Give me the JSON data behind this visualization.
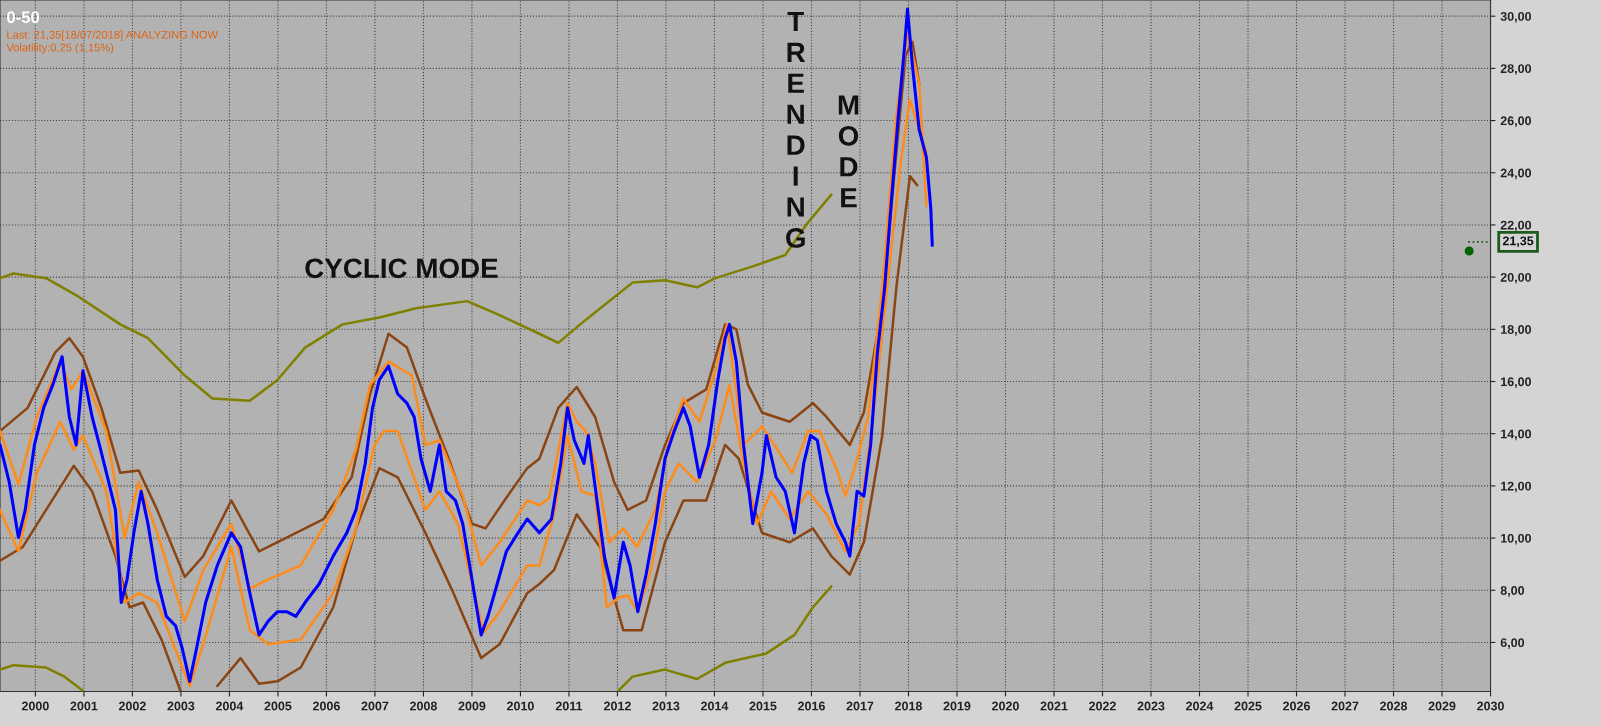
{
  "chart_data": {
    "type": "line",
    "title": "0-50",
    "subtitle": "Last: 21,35[18/07/2018] ANALYZING NOW\nVolatility:0,25 (1,15%)",
    "annotations": [
      "CYCLIC MODE",
      "TRENDING",
      "MODE"
    ],
    "ref_lines": [
      {
        "axis": "y",
        "value": 21.35,
        "label": "21,35",
        "color": "#1e5a1e",
        "line_style": "dotted"
      }
    ],
    "xlim": [
      1999.27,
      2030
    ],
    "xticks": [
      2000,
      2001,
      2002,
      2003,
      2004,
      2005,
      2006,
      2007,
      2008,
      2009,
      2010,
      2011,
      2012,
      2013,
      2014,
      2015,
      2016,
      2017,
      2018,
      2019,
      2020,
      2021,
      2022,
      2023,
      2024,
      2025,
      2026,
      2027,
      2028,
      2029,
      2030
    ],
    "ylim": [
      4.12,
      30.62
    ],
    "yticks": [
      {
        "value": 6,
        "label": "6,00"
      },
      {
        "value": 8,
        "label": "8,00"
      },
      {
        "value": 10,
        "label": "10,00"
      },
      {
        "value": 12,
        "label": "12,00"
      },
      {
        "value": 14,
        "label": "14,00"
      },
      {
        "value": 16,
        "label": "16,00"
      },
      {
        "value": 18,
        "label": "18,00"
      },
      {
        "value": 20,
        "label": "20,00"
      },
      {
        "value": 22,
        "label": "22,00"
      },
      {
        "value": 24,
        "label": "24,00"
      },
      {
        "value": 26,
        "label": "26,00"
      },
      {
        "value": 28,
        "label": "28,00"
      },
      {
        "value": 30,
        "label": "30,00"
      }
    ],
    "grid": true,
    "legend": false,
    "line_style": "solid",
    "series": [
      {
        "color": "#808000",
        "x": [
          1999.27,
          1999.55,
          2000.22,
          2000.89,
          2001.75,
          2002.32,
          2003.08,
          2003.65,
          2004.42,
          2004.99,
          2005.56,
          2006.33,
          2007.09,
          2007.85,
          2008.9,
          2009.57,
          2010.39,
          2010.78,
          2011.35,
          2012.31,
          2012.98,
          2013.64,
          2014.02,
          2014.79,
          2015.46,
          2015.93,
          2016.41
        ],
        "values": [
          19.96,
          20.14,
          19.96,
          19.25,
          18.19,
          17.66,
          16.23,
          15.35,
          15.26,
          16.06,
          17.3,
          18.19,
          18.45,
          18.81,
          19.08,
          18.54,
          17.83,
          17.48,
          18.37,
          19.79,
          19.88,
          19.61,
          19.96,
          20.41,
          20.85,
          22.1,
          23.16
        ]
      },
      {
        "color": "#808000",
        "x": [
          1999.27,
          1999.55,
          2000.22,
          2000.6,
          2000.98,
          2006.5,
          2012.02,
          2012.31,
          2012.98,
          2013.64,
          2014.22,
          2015.07,
          2015.65,
          2016.03,
          2016.41
        ],
        "values": [
          4.96,
          5.13,
          5.04,
          4.69,
          4.15,
          null,
          4.15,
          4.69,
          4.96,
          4.6,
          5.22,
          5.58,
          6.29,
          7.35,
          8.15
        ]
      },
      {
        "color": "#8b4513",
        "x": [
          1999.27,
          1999.84,
          2000.41,
          2000.7,
          2000.98,
          2001.36,
          2001.75,
          2002.13,
          2002.51,
          2003.08,
          2003.46,
          2004.04,
          2004.61,
          2005.18,
          2005.94,
          2006.52,
          2006.9,
          2007.28,
          2007.66,
          2008.04,
          2008.52,
          2009.0,
          2009.28,
          2009.67,
          2010.14,
          2010.39,
          2010.78,
          2011.16,
          2011.54,
          2011.93,
          2012.21,
          2012.59,
          2012.98,
          2013.36,
          2013.83,
          2014.22,
          2014.45,
          2014.69,
          2014.98,
          2015.55,
          2016.03,
          2016.31,
          2016.79,
          2017.08,
          2017.46,
          2017.75,
          2017.94,
          2018.08,
          2018.22
        ],
        "values": [
          14.1,
          14.99,
          17.12,
          17.66,
          16.95,
          14.99,
          12.5,
          12.59,
          11.08,
          8.51,
          9.31,
          11.44,
          9.49,
          10.02,
          10.73,
          12.33,
          15.52,
          17.83,
          17.3,
          15.35,
          13.04,
          10.55,
          10.37,
          11.44,
          12.68,
          13.04,
          14.99,
          15.79,
          14.64,
          12.15,
          11.08,
          11.44,
          13.57,
          15.17,
          15.7,
          18.19,
          18.01,
          15.88,
          14.81,
          14.46,
          15.17,
          14.64,
          13.57,
          14.81,
          18.9,
          24.76,
          28.49,
          29.02,
          27.42
        ]
      },
      {
        "color": "#8b4513",
        "x": [
          1999.27,
          1999.74,
          2000.22,
          2000.79,
          2001.17,
          2001.65,
          2001.94,
          2002.22,
          2002.6,
          2002.99,
          2003.4,
          2003.75,
          2004.23,
          2004.61,
          2004.99,
          2005.47,
          2006.14,
          2006.61,
          2007.09,
          2007.47,
          2008.04,
          2008.62,
          2009.19,
          2009.57,
          2010.14,
          2010.39,
          2010.69,
          2011.16,
          2011.64,
          2012.12,
          2012.5,
          2012.98,
          2013.36,
          2013.83,
          2014.22,
          2014.5,
          2014.98,
          2015.55,
          2016.03,
          2016.41,
          2016.79,
          2017.08,
          2017.46,
          2017.75,
          2018.03,
          2018.18
        ],
        "values": [
          9.13,
          9.66,
          11.08,
          12.77,
          11.79,
          9.31,
          7.35,
          7.53,
          6.11,
          4.15,
          null,
          4.33,
          5.4,
          4.42,
          4.51,
          5.04,
          7.35,
          10.37,
          12.68,
          12.33,
          10.2,
          7.89,
          5.4,
          5.93,
          7.89,
          8.24,
          8.77,
          10.91,
          9.66,
          6.47,
          6.47,
          9.84,
          11.44,
          11.44,
          13.57,
          13.04,
          10.2,
          9.84,
          10.37,
          9.31,
          8.6,
          9.84,
          13.93,
          19.61,
          23.87,
          23.52
        ]
      },
      {
        "color": "#ff8c1a",
        "x": [
          1999.27,
          1999.65,
          2000.03,
          2000.51,
          2000.74,
          2000.98,
          2001.46,
          2001.84,
          2002.13,
          2002.51,
          2003.08,
          2003.46,
          2004.04,
          2004.42,
          2004.8,
          2005.47,
          2006.14,
          2006.61,
          2006.9,
          2007.28,
          2007.76,
          2008.04,
          2008.33,
          2008.81,
          2009.19,
          2009.57,
          2010.14,
          2010.39,
          2010.59,
          2010.97,
          2011.16,
          2011.35,
          2011.54,
          2011.83,
          2012.12,
          2012.4,
          2012.78,
          2013.07,
          2013.36,
          2013.69,
          2014.02,
          2014.26,
          2014.6,
          2014.98,
          2015.36,
          2015.6,
          2015.93,
          2016.17,
          2016.51,
          2016.7,
          2016.89,
          2017.17,
          2017.46,
          2017.75,
          2017.98,
          2018.22,
          2018.37
        ],
        "values": [
          14.1,
          12.06,
          14.64,
          16.77,
          15.7,
          16.41,
          14.1,
          10.02,
          12.15,
          10.2,
          6.82,
          8.77,
          10.55,
          8.06,
          8.42,
          8.95,
          11.08,
          13.39,
          15.88,
          16.77,
          16.23,
          13.57,
          13.75,
          11.62,
          8.95,
          9.84,
          11.44,
          11.26,
          11.53,
          15.17,
          14.46,
          14.1,
          12.86,
          9.84,
          10.37,
          9.66,
          11.08,
          13.75,
          15.35,
          14.46,
          16.41,
          18.19,
          13.57,
          14.28,
          13.21,
          12.5,
          14.1,
          14.1,
          12.68,
          11.62,
          12.68,
          14.64,
          19.61,
          26.18,
          29.38,
          27.42,
          22.72
        ]
      },
      {
        "color": "#ff8c1a",
        "x": [
          1999.27,
          1999.65,
          2000.03,
          2000.51,
          2000.79,
          2000.98,
          2001.46,
          2001.84,
          2002.13,
          2002.51,
          2003.18,
          2003.46,
          2004.04,
          2004.42,
          2004.8,
          2005.47,
          2006.14,
          2006.61,
          2006.99,
          2007.19,
          2007.47,
          2008.04,
          2008.33,
          2008.71,
          2009.24,
          2009.57,
          2010.14,
          2010.39,
          2010.69,
          2010.97,
          2011.26,
          2011.54,
          2011.78,
          2012.02,
          2012.21,
          2012.42,
          2012.69,
          2012.98,
          2013.26,
          2013.64,
          2014.02,
          2014.31,
          2014.6,
          2014.88,
          2015.17,
          2015.55,
          2015.93,
          2016.31,
          2016.7,
          2016.98,
          2017.27,
          2017.56,
          2017.84,
          2018.03,
          2018.22,
          2018.37
        ],
        "values": [
          11.08,
          9.49,
          12.5,
          14.46,
          13.39,
          13.93,
          11.79,
          7.53,
          7.89,
          7.53,
          4.33,
          5.93,
          9.66,
          6.47,
          5.93,
          6.11,
          7.89,
          10.37,
          13.57,
          14.1,
          14.1,
          11.08,
          11.79,
          10.55,
          6.38,
          7.18,
          8.95,
          8.95,
          10.91,
          13.93,
          11.79,
          11.62,
          7.35,
          7.71,
          7.8,
          7.18,
          8.77,
          11.79,
          12.86,
          12.15,
          13.75,
          15.88,
          12.86,
          10.55,
          11.79,
          10.73,
          11.79,
          10.91,
          9.49,
          10.55,
          14.64,
          19.61,
          24.4,
          26.8,
          25.65,
          24.76
        ]
      },
      {
        "color": "#0000ff",
        "x": [
          1999.27,
          1999.46,
          1999.65,
          1999.79,
          1999.98,
          2000.17,
          2000.36,
          2000.55,
          2000.7,
          2000.84,
          2000.98,
          2001.17,
          2001.32,
          2001.51,
          2001.65,
          2001.77,
          2001.89,
          2002.03,
          2002.18,
          2002.32,
          2002.51,
          2002.7,
          2002.89,
          2003.03,
          2003.18,
          2003.32,
          2003.51,
          2003.75,
          2004.04,
          2004.23,
          2004.42,
          2004.61,
          2004.8,
          2004.99,
          2005.18,
          2005.37,
          2005.56,
          2005.85,
          2006.14,
          2006.42,
          2006.61,
          2006.8,
          2006.95,
          2007.09,
          2007.28,
          2007.47,
          2007.66,
          2007.81,
          2007.95,
          2008.14,
          2008.33,
          2008.47,
          2008.66,
          2008.81,
          2009.0,
          2009.19,
          2009.33,
          2009.52,
          2009.71,
          2009.95,
          2010.14,
          2010.39,
          2010.64,
          2010.83,
          2010.97,
          2011.11,
          2011.31,
          2011.4,
          2011.54,
          2011.73,
          2011.93,
          2012.12,
          2012.26,
          2012.42,
          2012.59,
          2012.78,
          2012.98,
          2013.17,
          2013.36,
          2013.5,
          2013.69,
          2013.88,
          2014.07,
          2014.22,
          2014.31,
          2014.45,
          2014.6,
          2014.79,
          2014.98,
          2015.07,
          2015.27,
          2015.46,
          2015.65,
          2015.84,
          2015.98,
          2016.12,
          2016.31,
          2016.51,
          2016.7,
          2016.79,
          2016.94,
          2017.08,
          2017.22,
          2017.36,
          2017.51,
          2017.65,
          2017.79,
          2017.92,
          2017.98,
          2018.08,
          2018.22,
          2018.37,
          2018.46,
          2018.49
        ],
        "values": [
          13.57,
          12.15,
          10.02,
          11.08,
          13.57,
          14.99,
          15.88,
          16.95,
          14.64,
          13.57,
          16.41,
          14.64,
          13.57,
          12.15,
          11.08,
          7.53,
          8.42,
          10.2,
          11.79,
          10.55,
          8.42,
          7.0,
          6.64,
          5.75,
          4.51,
          5.75,
          7.53,
          8.95,
          10.2,
          9.66,
          7.89,
          6.29,
          6.82,
          7.18,
          7.18,
          7.0,
          7.53,
          8.24,
          9.31,
          10.2,
          11.08,
          12.86,
          14.99,
          16.06,
          16.59,
          15.52,
          15.17,
          14.64,
          13.04,
          11.79,
          13.57,
          11.79,
          11.44,
          10.55,
          8.42,
          6.29,
          7.0,
          8.24,
          9.49,
          10.2,
          10.73,
          10.2,
          10.73,
          12.86,
          14.99,
          13.75,
          12.86,
          13.93,
          11.97,
          9.31,
          7.71,
          9.84,
          8.95,
          7.18,
          8.6,
          10.55,
          13.04,
          14.1,
          14.99,
          14.28,
          12.33,
          13.57,
          16.06,
          17.66,
          18.19,
          16.77,
          13.57,
          10.55,
          12.5,
          13.93,
          12.33,
          11.79,
          10.2,
          12.86,
          13.93,
          13.75,
          11.79,
          10.55,
          9.84,
          9.31,
          11.79,
          11.61,
          13.57,
          17.12,
          19.61,
          22.98,
          26.18,
          28.85,
          30.27,
          28.13,
          25.65,
          24.59,
          22.63,
          21.21
        ]
      },
      {
        "type": "scatter",
        "color": "#006400",
        "x": [
          2029.56
        ],
        "values": [
          21.0
        ]
      }
    ]
  }
}
